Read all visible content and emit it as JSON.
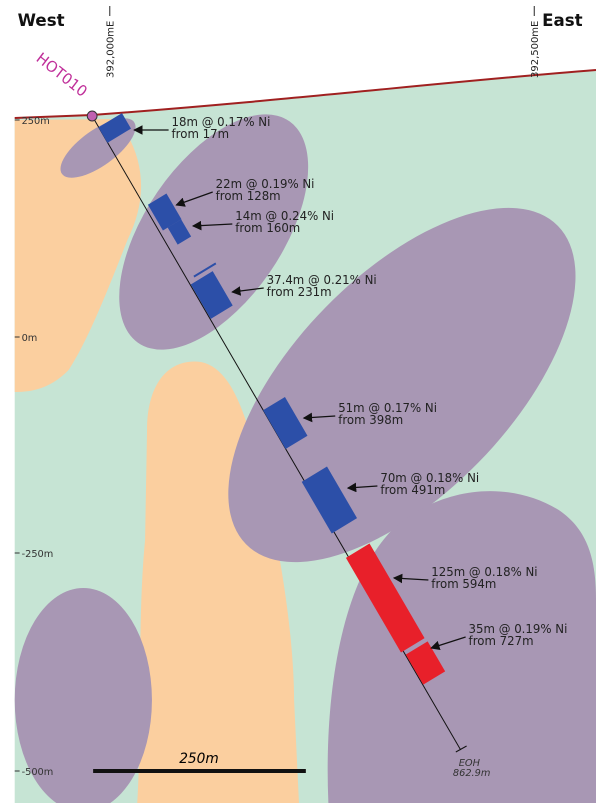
{
  "header": {
    "west": "West",
    "east": "East"
  },
  "eastings": [
    "392,000mE",
    "392,500mE"
  ],
  "hole": {
    "name": "HOT010",
    "eoh": "EOH",
    "eoh_depth": "862.9m"
  },
  "elevations": [
    "250m",
    "0m",
    "-250m",
    "-500m"
  ],
  "intercepts": [
    {
      "grade": "18m @ 0.17% Ni",
      "depth": "from 17m"
    },
    {
      "grade": "22m @ 0.19% Ni",
      "depth": "from 128m"
    },
    {
      "grade": "14m @ 0.24% Ni",
      "depth": "from 160m"
    },
    {
      "grade": "37.4m @ 0.21% Ni",
      "depth": "from 231m"
    },
    {
      "grade": "51m @ 0.17% Ni",
      "depth": "from 398m"
    },
    {
      "grade": "70m @ 0.18% Ni",
      "depth": "from 491m"
    },
    {
      "grade": "125m @ 0.18% Ni",
      "depth": "from 594m"
    },
    {
      "grade": "35m @ 0.19% Ni",
      "depth": "from 727m"
    }
  ],
  "scale_bar": "250m"
}
